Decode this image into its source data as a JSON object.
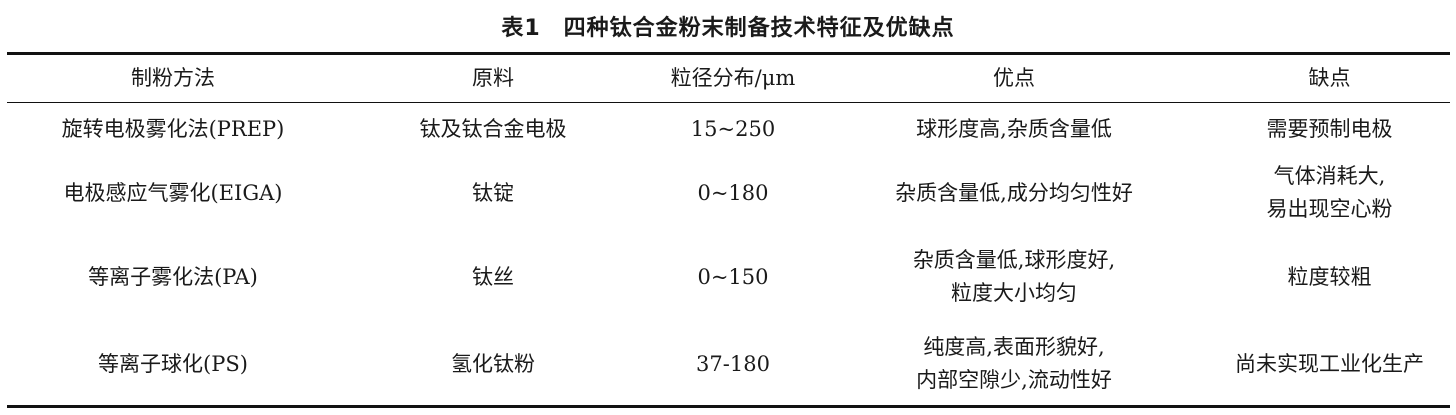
{
  "title": "表1　四种钛合金粉末制备技术特征及优缺点",
  "headers": [
    "制粉方法",
    "原料",
    "粒径分布/μm",
    "优点",
    "缺点"
  ],
  "rows": [
    {
      "method": "旋转电极雾化法(PREP)",
      "material": "钛及钛合金电极",
      "size": "15~250",
      "pros": [
        "球形度高,杂质含量低"
      ],
      "cons": [
        "需要预制电极"
      ]
    },
    {
      "method": "电极感应气雾化(EIGA)",
      "material": "钛锭",
      "size": "0~180",
      "pros": [
        "杂质含量低,成分均匀性好"
      ],
      "cons": [
        "气体消耗大,",
        "易出现空心粉"
      ]
    },
    {
      "method": "等离子雾化法(PA)",
      "material": "钛丝",
      "size": "0~150",
      "pros": [
        "杂质含量低,球形度好,",
        "粒度大小均匀"
      ],
      "cons": [
        "粒度较粗"
      ]
    },
    {
      "method": "等离子球化(PS)",
      "material": "氢化钛粉",
      "size": "37-180",
      "pros": [
        "纯度高,表面形貌好,",
        "内部空隙少,流动性好"
      ],
      "cons": [
        "尚未实现工业化生产"
      ]
    }
  ]
}
